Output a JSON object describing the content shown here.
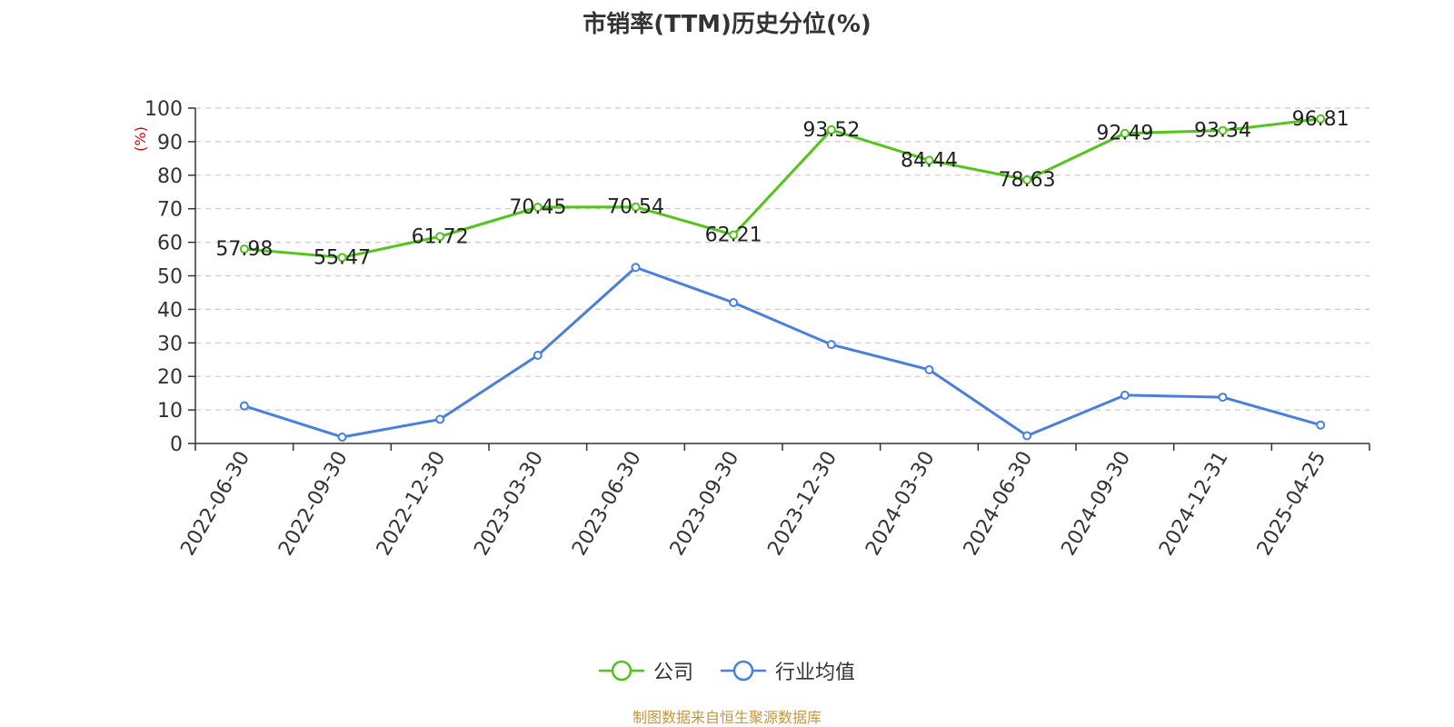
{
  "chart_data": {
    "type": "line",
    "title": "市销率(TTM)历史分位(%)",
    "ylabel": "(%)",
    "ylim": [
      0,
      100
    ],
    "yticks": [
      0,
      10,
      20,
      30,
      40,
      50,
      60,
      70,
      80,
      90,
      100
    ],
    "grid": true,
    "legend_position": "bottom",
    "categories": [
      "2022-06-30",
      "2022-09-30",
      "2022-12-30",
      "2023-03-30",
      "2023-06-30",
      "2023-09-30",
      "2023-12-30",
      "2024-03-30",
      "2024-06-30",
      "2024-09-30",
      "2024-12-31",
      "2025-04-25"
    ],
    "series": [
      {
        "name": "公司",
        "color": "#52c41a",
        "values": [
          57.98,
          55.47,
          61.72,
          70.45,
          70.54,
          62.21,
          93.52,
          84.44,
          78.63,
          92.49,
          93.34,
          96.81
        ],
        "labels": [
          "57.98",
          "55.47",
          "61.72",
          "70.45",
          "70.54",
          "62.21",
          "93.52",
          "84.44",
          "78.63",
          "92.49",
          "93.34",
          "96.81"
        ]
      },
      {
        "name": "行业均值",
        "color": "#4a7fe0",
        "values": [
          11.2,
          1.9,
          7.2,
          26.3,
          52.5,
          42.0,
          29.5,
          22.0,
          2.3,
          14.4,
          13.8,
          5.5
        ]
      }
    ],
    "source": "制图数据来自恒生聚源数据库"
  }
}
